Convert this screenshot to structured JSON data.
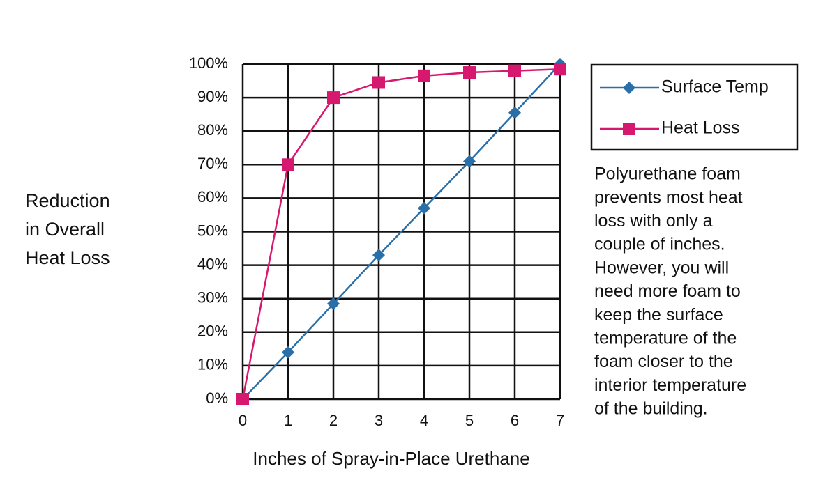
{
  "chart_data": {
    "type": "line",
    "xlabel": "Inches of Spray-in-Place Urethane",
    "ylabel": [
      "Reduction",
      "in Overall",
      "Heat Loss"
    ],
    "x": [
      0,
      1,
      2,
      3,
      4,
      5,
      6,
      7
    ],
    "series": [
      {
        "name": "Surface Temp",
        "color": "#2a6fa8",
        "marker": "diamond",
        "values": [
          0,
          14,
          28.5,
          43,
          57,
          71,
          85.5,
          100
        ]
      },
      {
        "name": "Heat Loss",
        "color": "#d6186e",
        "marker": "square",
        "values": [
          0,
          70,
          90,
          94.5,
          96.5,
          97.5,
          98,
          98.5
        ]
      }
    ],
    "xlim": [
      0,
      7
    ],
    "xticks": [
      0,
      1,
      2,
      3,
      4,
      5,
      6,
      7
    ],
    "ylim": [
      0,
      100
    ],
    "yticks": [
      {
        "value": 0,
        "label": "0%"
      },
      {
        "value": 10,
        "label": "10%"
      },
      {
        "value": 20,
        "label": "20%"
      },
      {
        "value": 30,
        "label": "30%"
      },
      {
        "value": 40,
        "label": "40%"
      },
      {
        "value": 50,
        "label": "50%"
      },
      {
        "value": 60,
        "label": "60%"
      },
      {
        "value": 70,
        "label": "70%"
      },
      {
        "value": 80,
        "label": "80%"
      },
      {
        "value": 90,
        "label": "90%"
      },
      {
        "value": 100,
        "label": "100%"
      }
    ],
    "grid": true,
    "legend": "right",
    "annotation": [
      "Polyurethane foam",
      "prevents most heat",
      "loss with only a",
      "couple of inches.",
      "However, you will",
      "need more foam to",
      "keep the surface",
      "temperature of the",
      "foam closer to the",
      "interior temperature",
      "of the building."
    ]
  }
}
